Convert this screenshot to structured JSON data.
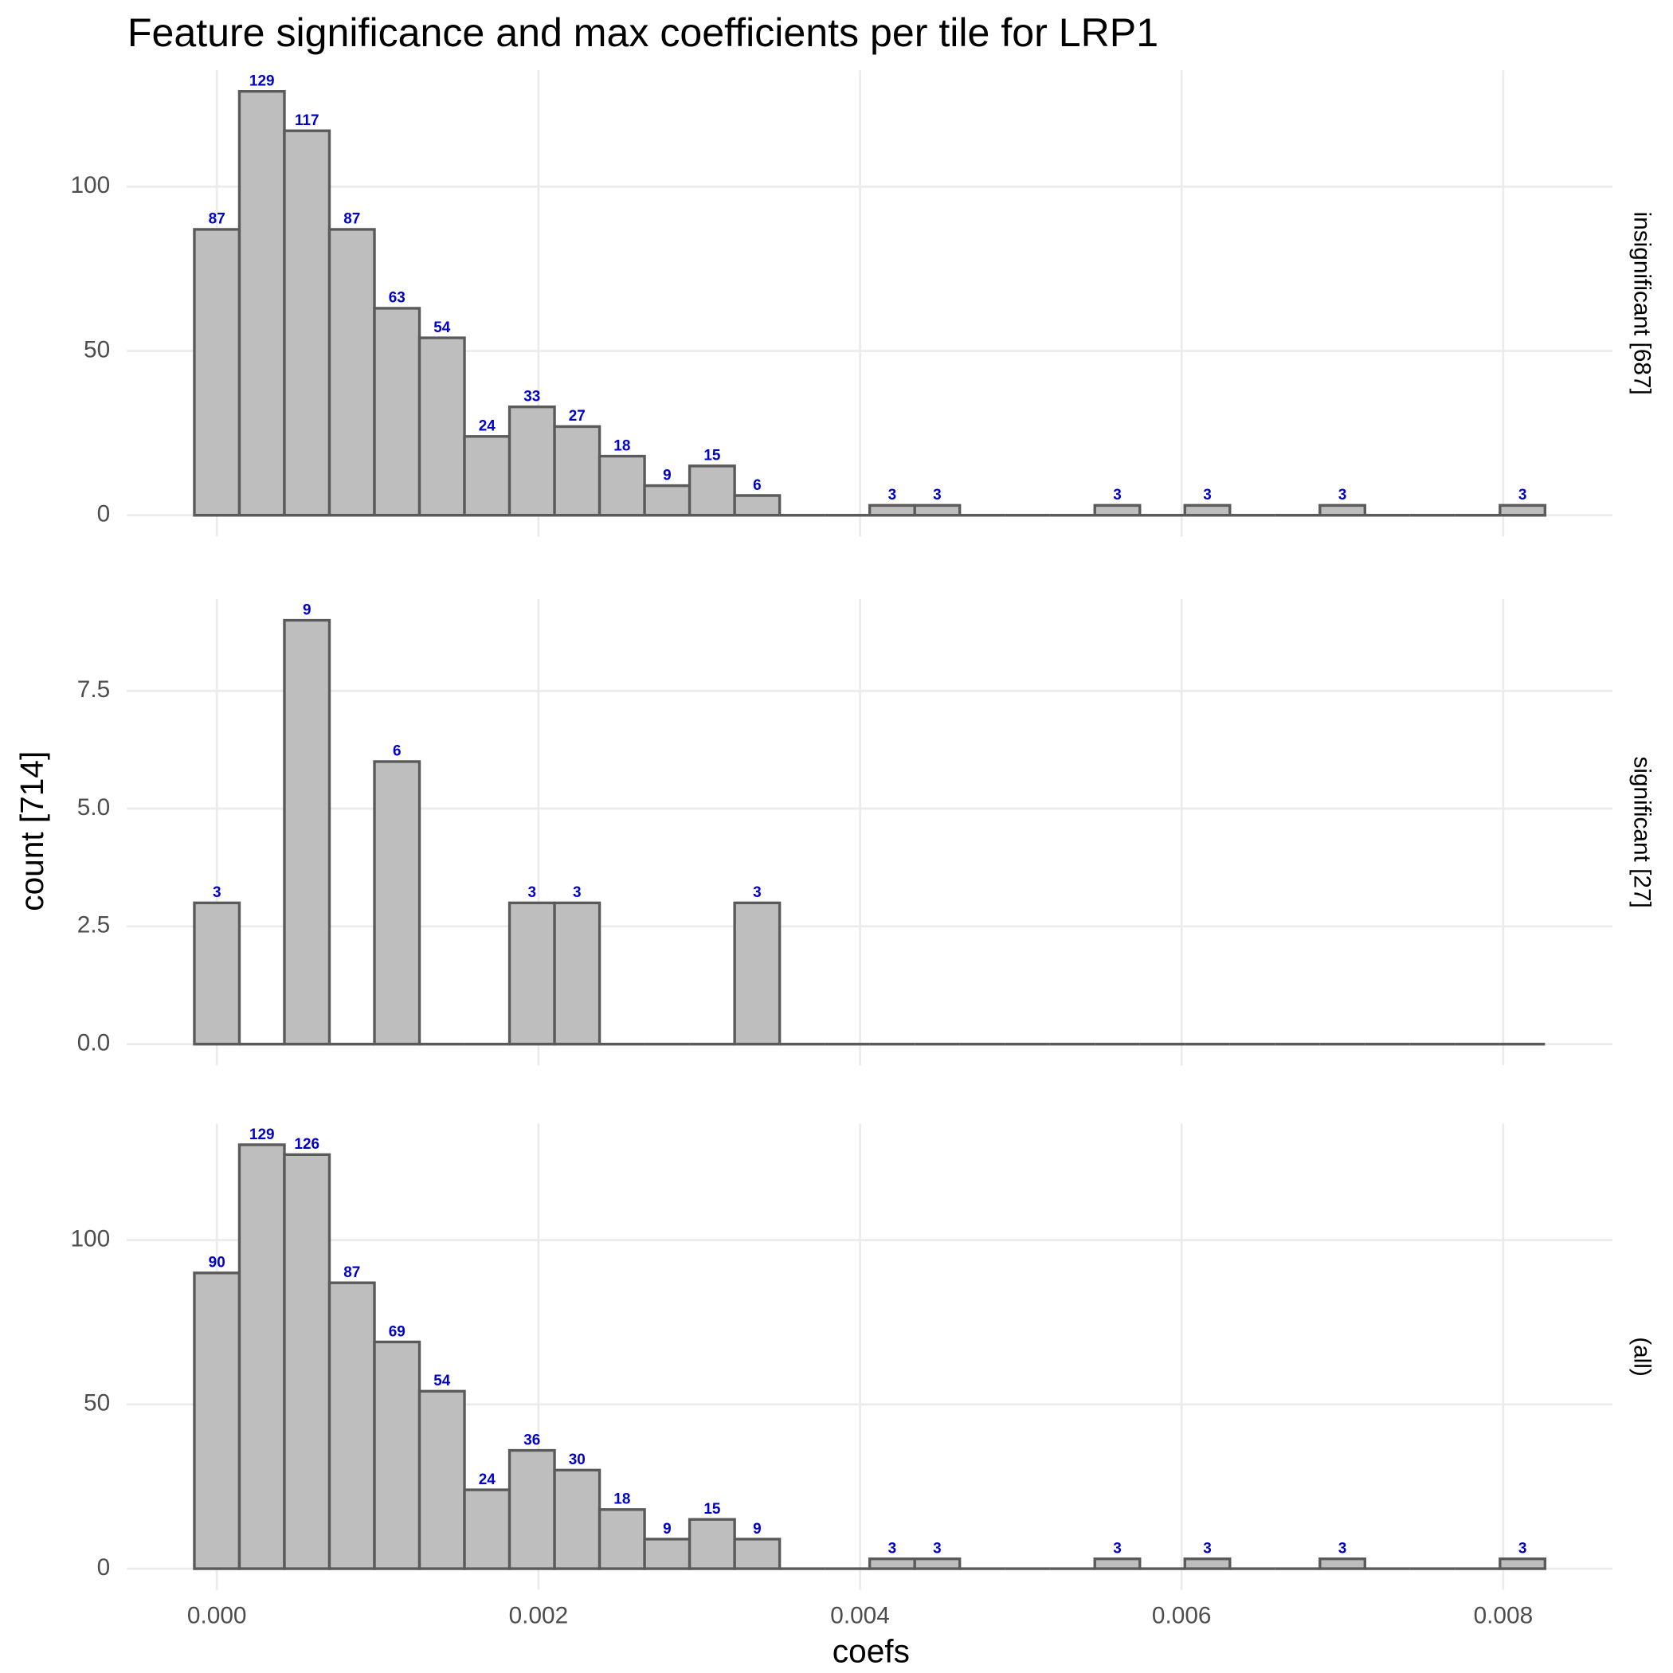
{
  "chart_data": {
    "type": "histogram",
    "title": "Feature significance and max coefficients per tile for LRP1",
    "x_label": "coefs",
    "y_label": "count [714]",
    "bins": [
      -0.00014,
      0.00014,
      0.00042,
      0.0007,
      0.00098,
      0.00126,
      0.00154,
      0.00182,
      0.0021,
      0.00238,
      0.00266,
      0.00294,
      0.00322,
      0.0035,
      0.00378,
      0.00406,
      0.00434,
      0.00462,
      0.0049,
      0.00518,
      0.00546,
      0.00574,
      0.00602,
      0.0063,
      0.00658,
      0.00686,
      0.00714,
      0.00742,
      0.0077,
      0.00798,
      0.00826
    ],
    "xlim": [
      -0.00056,
      0.00868
    ],
    "xticks": [
      {
        "value": 0,
        "label": "0.000"
      },
      {
        "value": 0.002,
        "label": "0.002"
      },
      {
        "value": 0.004,
        "label": "0.004"
      },
      {
        "value": 0.006,
        "label": "0.006"
      },
      {
        "value": 0.008,
        "label": "0.008"
      }
    ],
    "color": "#bebebe",
    "edge_color": "#5a5a5a",
    "label_color": "#0000cc",
    "grid": true,
    "facets": [
      {
        "name": "insignificant [687]",
        "values": [
          87,
          129,
          117,
          87,
          63,
          54,
          24,
          33,
          27,
          18,
          9,
          15,
          6,
          0,
          0,
          3,
          3,
          0,
          0,
          0,
          3,
          0,
          3,
          0,
          0,
          3,
          0,
          0,
          0,
          3
        ],
        "ylim": [
          -6.45,
          135.45
        ],
        "yticks": [
          0,
          50,
          100
        ]
      },
      {
        "name": "significant [27]",
        "values": [
          3,
          0,
          9,
          0,
          6,
          0,
          0,
          3,
          3,
          0,
          0,
          0,
          3,
          0,
          0,
          0,
          0,
          0,
          0,
          0,
          0,
          0,
          0,
          0,
          0,
          0,
          0,
          0,
          0,
          0
        ],
        "ylim": [
          -0.45,
          9.45
        ],
        "yticks": [
          {
            "value": 0,
            "label": "0.0"
          },
          2.5,
          {
            "value": 5,
            "label": "5.0"
          },
          7.5
        ]
      },
      {
        "name": "(all)",
        "values": [
          90,
          129,
          126,
          87,
          69,
          54,
          24,
          36,
          30,
          18,
          9,
          15,
          9,
          0,
          0,
          3,
          3,
          0,
          0,
          0,
          3,
          0,
          3,
          0,
          0,
          3,
          0,
          0,
          0,
          3
        ],
        "ylim": [
          -6.45,
          135.45
        ],
        "yticks": [
          0,
          50,
          100
        ]
      }
    ]
  }
}
